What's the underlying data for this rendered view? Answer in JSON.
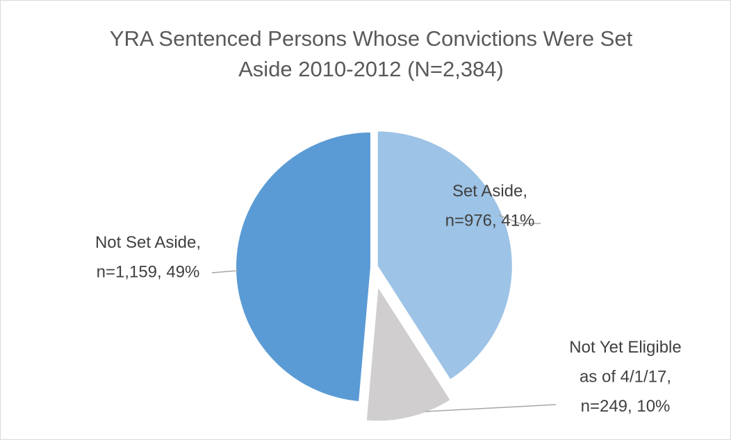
{
  "chart_data": {
    "type": "pie",
    "title": "YRA Sentenced Persons Whose Convictions Were Set Aside 2010-2012 (N=2,384)",
    "categories": [
      "Set Aside,",
      "Not Yet Eligible\nas of 4/1/17,",
      "Not Set Aside,"
    ],
    "values": [
      976,
      249,
      1159
    ],
    "value_labels": [
      "n=976, 41%",
      "n=249, 10%",
      "n=1,159, 49%"
    ],
    "colors": [
      "#9dc3e6",
      "#d0cece",
      "#5b9bd5"
    ]
  }
}
